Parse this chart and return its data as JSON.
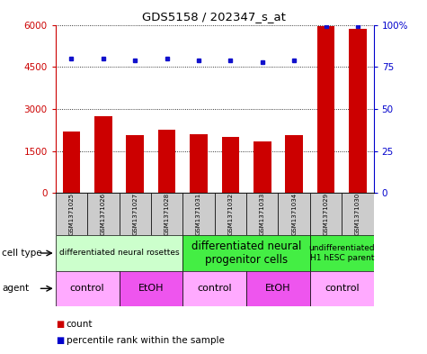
{
  "title": "GDS5158 / 202347_s_at",
  "samples": [
    "GSM1371025",
    "GSM1371026",
    "GSM1371027",
    "GSM1371028",
    "GSM1371031",
    "GSM1371032",
    "GSM1371033",
    "GSM1371034",
    "GSM1371029",
    "GSM1371030"
  ],
  "counts": [
    2200,
    2750,
    2050,
    2250,
    2100,
    2000,
    1850,
    2050,
    5950,
    5850
  ],
  "percentiles": [
    80,
    80,
    79,
    80,
    79,
    79,
    78,
    79,
    99,
    99
  ],
  "ylim_left": [
    0,
    6000
  ],
  "ylim_right": [
    0,
    100
  ],
  "yticks_left": [
    0,
    1500,
    3000,
    4500,
    6000
  ],
  "yticks_right": [
    0,
    25,
    50,
    75,
    100
  ],
  "bar_color": "#cc0000",
  "dot_color": "#1111cc",
  "cell_type_groups": [
    {
      "label": "differentiated neural rosettes",
      "start": 0,
      "end": 4,
      "color": "#ccffcc",
      "fontsize": 6.5,
      "bold": false
    },
    {
      "label": "differentiated neural\nprogenitor cells",
      "start": 4,
      "end": 8,
      "color": "#44ee44",
      "fontsize": 8.5,
      "bold": false
    },
    {
      "label": "undifferentiated\nH1 hESC parent",
      "start": 8,
      "end": 10,
      "color": "#44ee44",
      "fontsize": 6.5,
      "bold": false
    }
  ],
  "agent_groups": [
    {
      "label": "control",
      "start": 0,
      "end": 2,
      "color": "#ffaaff"
    },
    {
      "label": "EtOH",
      "start": 2,
      "end": 4,
      "color": "#ee55ee"
    },
    {
      "label": "control",
      "start": 4,
      "end": 6,
      "color": "#ffaaff"
    },
    {
      "label": "EtOH",
      "start": 6,
      "end": 8,
      "color": "#ee55ee"
    },
    {
      "label": "control",
      "start": 8,
      "end": 10,
      "color": "#ffaaff"
    }
  ],
  "sample_bg_color": "#cccccc",
  "left_axis_color": "#cc0000",
  "right_axis_color": "#0000cc",
  "legend_count_color": "#cc0000",
  "legend_dot_color": "#0000cc",
  "fig_width": 4.75,
  "fig_height": 3.93,
  "dpi": 100
}
